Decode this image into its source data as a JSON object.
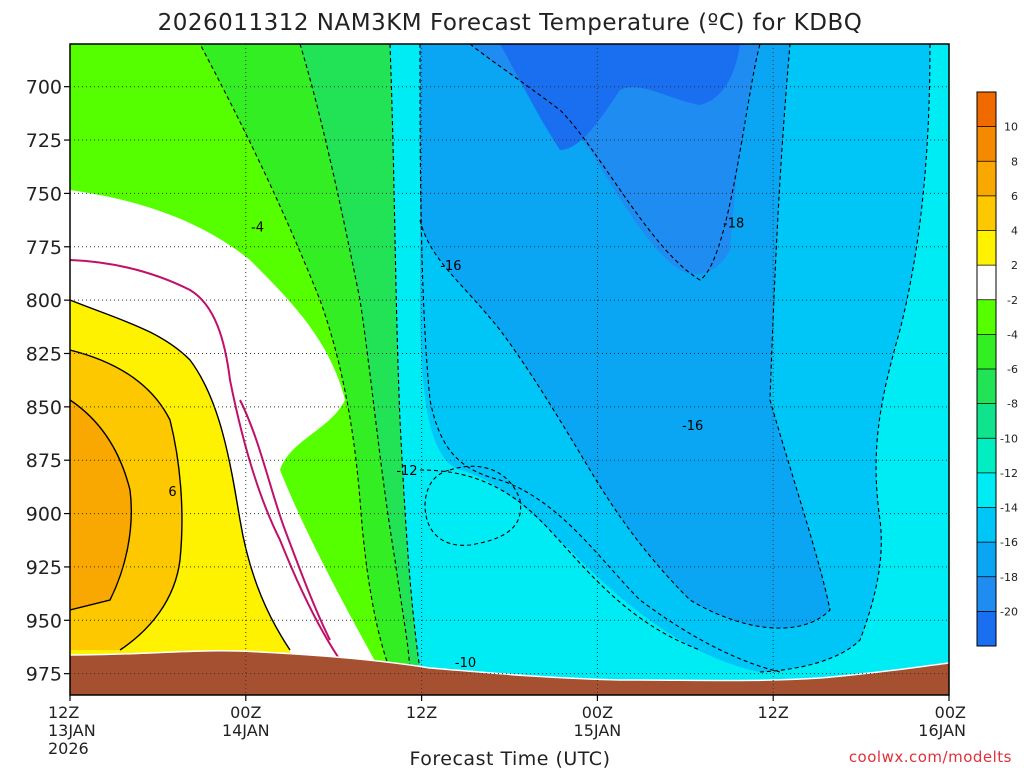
{
  "chart_data": {
    "type": "heatmap",
    "title": "2026011312 NAM3KM Forecast Temperature (ºC) for KDBQ",
    "xlabel": "Forecast Time (UTC)",
    "ylabel": "",
    "credit": "coolwx.com/modelts",
    "y_ticks": [
      {
        "value": 700,
        "label": "700"
      },
      {
        "value": 725,
        "label": "725"
      },
      {
        "value": 750,
        "label": "750"
      },
      {
        "value": 775,
        "label": "775"
      },
      {
        "value": 800,
        "label": "800"
      },
      {
        "value": 825,
        "label": "825"
      },
      {
        "value": 850,
        "label": "850"
      },
      {
        "value": 875,
        "label": "875"
      },
      {
        "value": 900,
        "label": "900"
      },
      {
        "value": 925,
        "label": "925"
      },
      {
        "value": 950,
        "label": "950"
      },
      {
        "value": 975,
        "label": "975"
      }
    ],
    "ylim": [
      680,
      985
    ],
    "x_ticks": [
      {
        "hour": 0,
        "lines": [
          "12Z",
          "13JAN",
          "2026"
        ]
      },
      {
        "hour": 12,
        "lines": [
          "00Z",
          "14JAN"
        ]
      },
      {
        "hour": 24,
        "lines": [
          "12Z"
        ]
      },
      {
        "hour": 36,
        "lines": [
          "00Z",
          "15JAN"
        ]
      },
      {
        "hour": 48,
        "lines": [
          "12Z"
        ]
      },
      {
        "hour": 60,
        "lines": [
          "00Z",
          "16JAN"
        ]
      }
    ],
    "xlim": [
      0,
      60
    ],
    "colorbar": {
      "labels": [
        "10",
        "8",
        "6",
        "4",
        "2",
        "-2",
        "-4",
        "-6",
        "-8",
        "-10",
        "-12",
        "-14",
        "-16",
        "-18",
        "-20"
      ],
      "colors": [
        "#f06a00",
        "#f58a00",
        "#f8a800",
        "#fdc800",
        "#fff200",
        "#ffffff",
        "#55ff00",
        "#33ee22",
        "#22e255",
        "#11e38c",
        "#00eec0",
        "#00ecf4",
        "#00c6f8",
        "#0aa6f3",
        "#1f8cf2",
        "#1a6ef0"
      ]
    },
    "contour_labels": [
      {
        "text": "-4",
        "hour": 12.8,
        "p": 766
      },
      {
        "text": "-16",
        "hour": 26.0,
        "p": 784
      },
      {
        "text": "-18",
        "hour": 45.3,
        "p": 764
      },
      {
        "text": "-16",
        "hour": 42.5,
        "p": 859
      },
      {
        "text": "-12",
        "hour": 23.0,
        "p": 880
      },
      {
        "text": "6",
        "hour": 7.0,
        "p": 890
      },
      {
        "text": "-10",
        "hour": 27.0,
        "p": 970
      }
    ],
    "terrain_color": "#a55030"
  }
}
